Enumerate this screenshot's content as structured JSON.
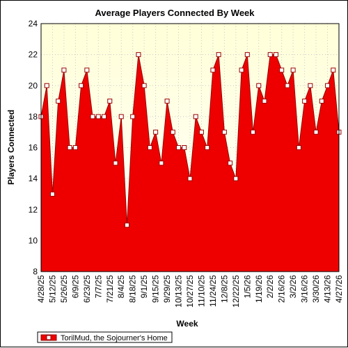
{
  "chart_data": {
    "type": "area",
    "title": "Average Players Connected By Week",
    "xlabel": "Week",
    "ylabel": "Players Connected",
    "ylim": [
      8,
      24
    ],
    "yticks": [
      8,
      10,
      12,
      14,
      16,
      18,
      20,
      22,
      24
    ],
    "grid": true,
    "legend_position": "bottom-left",
    "colors": {
      "fill": "#ee0000",
      "line": "#990000",
      "plot_background_top": "#ffffd8",
      "plot_background_bottom": "#ffffff",
      "marker_fill": "#ffffff"
    },
    "x_tick_labels": [
      "4/28/25",
      "5/12/25",
      "5/26/25",
      "6/9/25",
      "6/23/25",
      "7/7/25",
      "7/21/25",
      "8/4/25",
      "8/18/25",
      "9/1/25",
      "9/15/25",
      "9/29/25",
      "10/13/25",
      "10/27/25",
      "11/10/25",
      "11/24/25",
      "12/8/25",
      "12/22/25",
      "1/5/26",
      "1/19/26",
      "2/2/26",
      "2/16/26",
      "3/2/26",
      "3/16/26",
      "3/30/26",
      "4/13/26",
      "4/27/26"
    ],
    "series": [
      {
        "name": "TorilMud, the Sojourner's Home",
        "values": [
          18,
          20,
          13,
          19,
          21,
          16,
          16,
          20,
          21,
          18,
          18,
          18,
          19,
          15,
          18,
          11,
          18,
          22,
          20,
          16,
          17,
          15,
          19,
          17,
          16,
          16,
          14,
          18,
          17,
          16,
          21,
          22,
          17,
          15,
          14,
          21,
          22,
          17,
          20,
          19,
          22,
          22,
          21,
          20,
          21,
          16,
          19,
          20,
          17,
          19,
          20,
          21,
          17
        ]
      }
    ]
  }
}
